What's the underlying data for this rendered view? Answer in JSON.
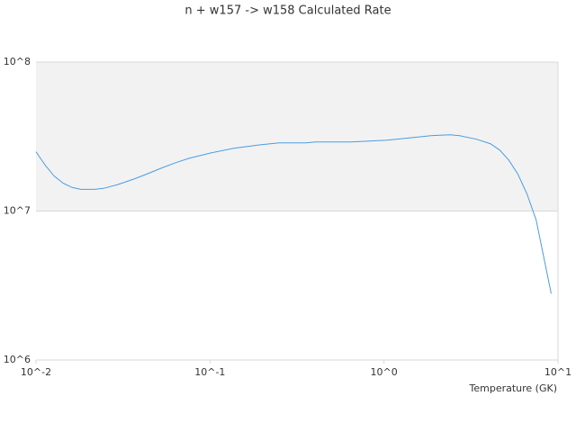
{
  "chart_data": {
    "type": "line",
    "title": "n + w157 -> w158 Calculated Rate",
    "x_label": "Temperature (GK)",
    "x": [
      0.01,
      0.0113,
      0.0127,
      0.0143,
      0.0161,
      0.0181,
      0.0217,
      0.0244,
      0.0292,
      0.0371,
      0.0443,
      0.053,
      0.0634,
      0.0758,
      0.102,
      0.137,
      0.197,
      0.25,
      0.357,
      0.402,
      0.645,
      0.82,
      1.04,
      1.48,
      1.89,
      2.4,
      2.7,
      3.42,
      4.09,
      4.62,
      5.21,
      5.88,
      6.64,
      7.49,
      9.14
    ],
    "values": [
      25000000,
      20300000,
      17200000,
      15400000,
      14400000,
      14000000,
      14000000,
      14200000,
      15000000,
      16500000,
      17900000,
      19500000,
      21100000,
      22600000,
      24600000,
      26400000,
      27900000,
      28700000,
      28700000,
      29100000,
      29100000,
      29500000,
      29900000,
      31200000,
      32100000,
      32500000,
      32100000,
      30300000,
      28300000,
      25700000,
      22000000,
      17700000,
      13000000,
      8710000,
      2790000
    ],
    "color": "#4a9de0",
    "x_log": true,
    "y_log": true,
    "xlim": [
      0.01,
      10
    ],
    "xticks": [
      {
        "value": 0.01,
        "label": "10^-2"
      },
      {
        "value": 0.1,
        "label": "10^-1"
      },
      {
        "value": 1,
        "label": "10^0"
      },
      {
        "value": 10,
        "label": "10^1"
      }
    ],
    "ylim": [
      1000000,
      100000000
    ],
    "yticks": [
      {
        "value": 1000000,
        "label": "10^6"
      },
      {
        "value": 10000000,
        "label": "10^7"
      },
      {
        "value": 100000000,
        "label": "10^8"
      }
    ],
    "bands": true
  }
}
